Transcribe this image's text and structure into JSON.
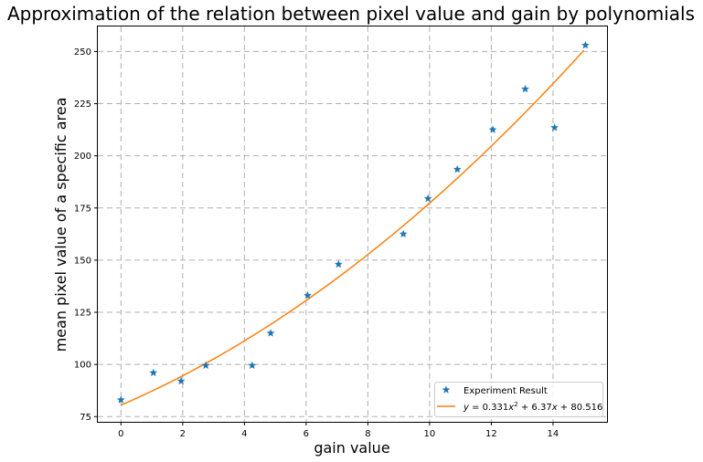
{
  "chart_data": {
    "type": "scatter",
    "title": "Approximation of the relation between pixel value and gain by polynomials",
    "xlabel": "gain value",
    "ylabel": "mean pixel value of a specific area",
    "xlim": [
      -0.75,
      15.75
    ],
    "ylim": [
      72.5,
      262
    ],
    "x_ticks": [
      0,
      2,
      4,
      6,
      8,
      10,
      12,
      14
    ],
    "y_ticks": [
      75,
      100,
      125,
      150,
      175,
      200,
      225,
      250
    ],
    "grid": true,
    "grid_style": "dashed",
    "legend_position": "lower-right",
    "series": [
      {
        "name": "Experiment Result",
        "kind": "scatter",
        "marker": "star",
        "color": "#1f77b4",
        "points": [
          {
            "x": 0,
            "y": 83
          },
          {
            "x": 1.05,
            "y": 96
          },
          {
            "x": 1.95,
            "y": 92
          },
          {
            "x": 2.75,
            "y": 99.5
          },
          {
            "x": 4.25,
            "y": 99.5
          },
          {
            "x": 4.85,
            "y": 115
          },
          {
            "x": 6.05,
            "y": 133
          },
          {
            "x": 7.05,
            "y": 148
          },
          {
            "x": 9.15,
            "y": 162.5
          },
          {
            "x": 9.95,
            "y": 179.5
          },
          {
            "x": 10.9,
            "y": 193.5
          },
          {
            "x": 12.05,
            "y": 212.5
          },
          {
            "x": 13.1,
            "y": 232
          },
          {
            "x": 14.05,
            "y": 213.5
          },
          {
            "x": 15.05,
            "y": 253
          }
        ]
      },
      {
        "name": "y = 0.331x² + 6.37x + 80.516",
        "kind": "line",
        "color": "#ff7f0e",
        "coefficients": {
          "a": 0.331,
          "b": 6.37,
          "c": 80.516
        },
        "x_range": [
          0,
          15
        ]
      }
    ]
  }
}
